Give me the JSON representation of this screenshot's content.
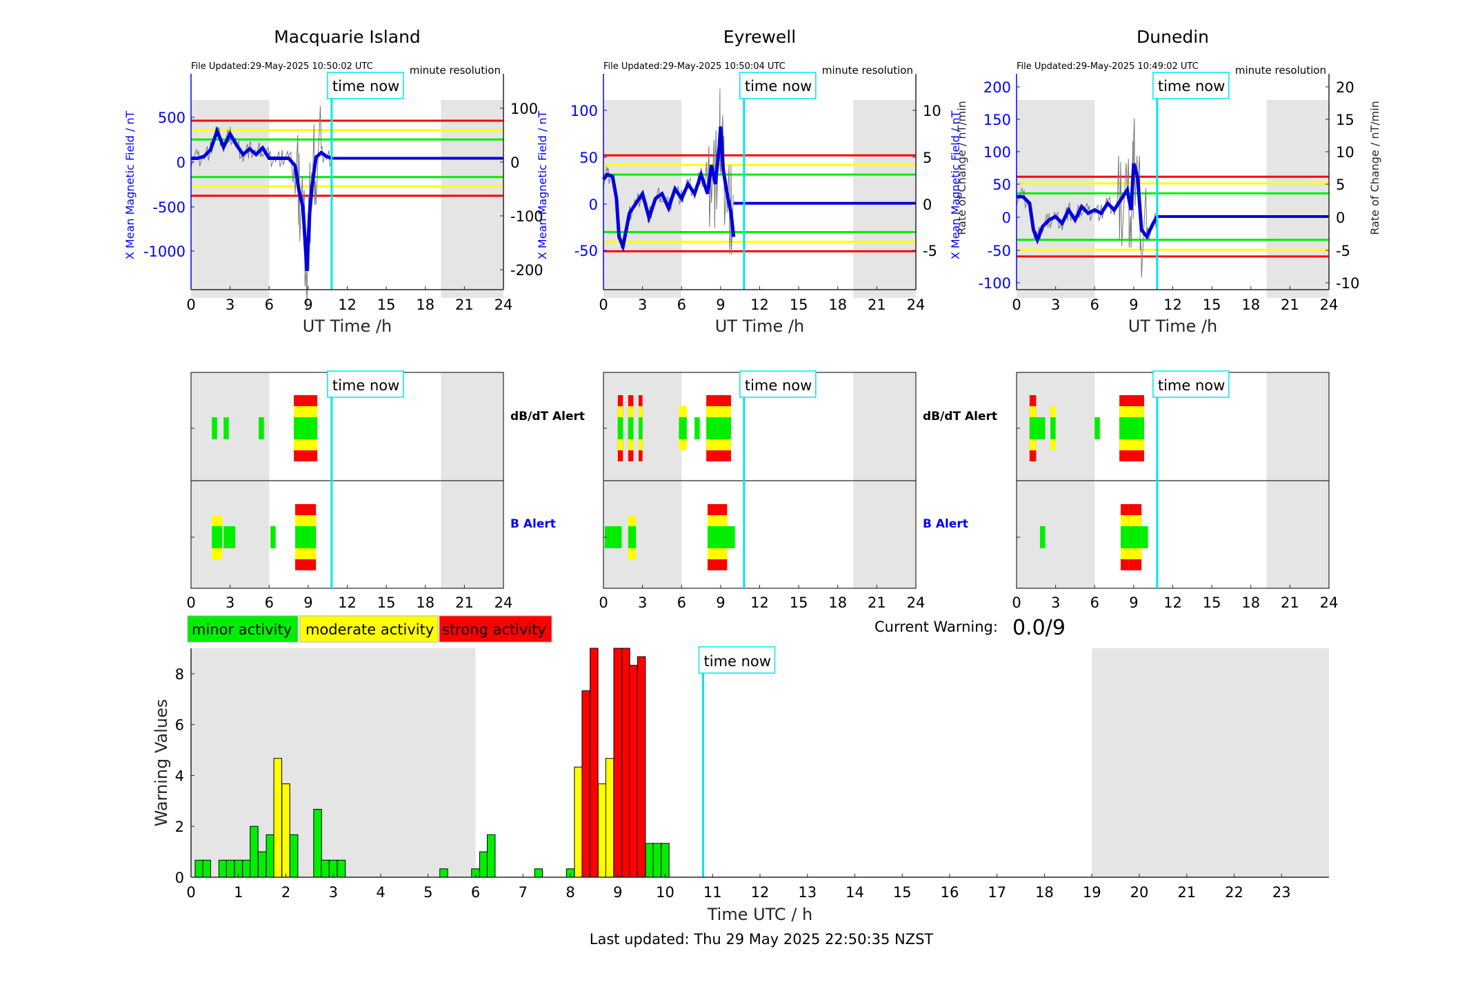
{
  "stations": [
    {
      "name": "Macquarie Island",
      "file_updated": "File Updated:29-May-2025 10:50:02 UTC",
      "resolution": "minute resolution",
      "left_ylabel": "X Mean Magnetic Field / nT",
      "right_ylabel": "",
      "left_ticks": [
        "500",
        "0",
        "-500",
        "-1000"
      ],
      "right_ticks": [
        "100",
        "0",
        "-100",
        "-200"
      ]
    },
    {
      "name": "Eyrewell",
      "file_updated": "File Updated:29-May-2025 10:50:04 UTC",
      "resolution": "minute resolution",
      "left_ylabel": "X Mean Magnetic Field / nT",
      "right_ylabel": "Rate of Change / nT/min",
      "left_ticks": [
        "100",
        "50",
        "0",
        "-50"
      ],
      "right_ticks": [
        "10",
        "5",
        "0",
        "-5"
      ]
    },
    {
      "name": "Dunedin",
      "file_updated": "File Updated:29-May-2025 10:49:02 UTC",
      "resolution": "minute resolution",
      "left_ylabel": "X Mean Magnetic Field / nT",
      "right_ylabel": "Rate of Change / nT/min",
      "left_ticks": [
        "200",
        "150",
        "100",
        "50",
        "0",
        "-50",
        "-100"
      ],
      "right_ticks": [
        "20",
        "15",
        "10",
        "5",
        "0",
        "-5",
        "-10"
      ]
    }
  ],
  "top_xlabel": "UT Time /h",
  "x_ticks_24": [
    "0",
    "3",
    "6",
    "9",
    "12",
    "15",
    "18",
    "21",
    "24"
  ],
  "time_now_label": "time now",
  "alert_labels": {
    "dbdt": "dB/dT Alert",
    "b": "B Alert"
  },
  "legend": [
    {
      "label": "minor activity",
      "color": "#00ee00"
    },
    {
      "label": "moderate activity",
      "color": "#ffff00"
    },
    {
      "label": "strong activity",
      "color": "#ff0000"
    }
  ],
  "current_warning": {
    "label": "Current Warning:",
    "value": "0.0/9"
  },
  "bottom_ylabel": "Warning Values",
  "bottom_xlabel": "Time UTC / h",
  "bottom_x_ticks": [
    "0",
    "1",
    "2",
    "3",
    "4",
    "5",
    "6",
    "7",
    "8",
    "9",
    "10",
    "11",
    "12",
    "13",
    "14",
    "15",
    "16",
    "17",
    "18",
    "19",
    "20",
    "21",
    "22",
    "23"
  ],
  "bottom_y_ticks": [
    "0",
    "2",
    "4",
    "6",
    "8"
  ],
  "last_updated": "Last updated: Thu 29 May 2025 22:50:35 NZST",
  "colors": {
    "minor": "#00ee00",
    "moderate": "#ffff00",
    "strong": "#ff0000",
    "time_now": "#00e5ee",
    "axis_blue": "#0000ff",
    "shade": "#e5e5e5"
  },
  "chart_data": [
    {
      "type": "line",
      "title": "Macquarie Island",
      "xlabel": "UT Time /h",
      "ylabel": "X Mean Magnetic Field / nT",
      "xlim": [
        0,
        24
      ],
      "ylim": [
        -1400,
        900
      ],
      "y2lim": [
        -240,
        140
      ],
      "time_now": 10.8,
      "thresholds": {
        "strong": 400,
        "moderate": 300,
        "minor": 200
      },
      "series": [
        {
          "x": [
            0,
            0.5,
            1,
            1.5,
            2,
            2.5,
            3,
            3.5,
            4,
            4.5,
            5,
            5.5,
            6,
            6.5,
            7,
            7.5,
            8,
            8.3,
            8.6,
            8.9,
            9.1,
            9.3,
            9.6,
            10,
            10.4,
            10.8
          ],
          "values": [
            0,
            0,
            20,
            90,
            290,
            120,
            260,
            140,
            40,
            100,
            40,
            110,
            0,
            0,
            0,
            0,
            -80,
            -350,
            -520,
            -1200,
            -600,
            -300,
            10,
            60,
            20,
            0
          ]
        }
      ]
    },
    {
      "type": "line",
      "title": "Eyrewell",
      "xlabel": "UT Time /h",
      "ylabel": "X Mean Magnetic Field / nT",
      "xlim": [
        0,
        24
      ],
      "ylim": [
        -90,
        135
      ],
      "y2lim": [
        -9,
        13.5
      ],
      "time_now": 10.8,
      "thresholds": {
        "strong": 50,
        "moderate": 40,
        "minor": 30
      },
      "series": [
        {
          "x": [
            0,
            0.3,
            0.7,
            1,
            1.2,
            1.5,
            2,
            2.5,
            3,
            3.5,
            4,
            4.5,
            5,
            5.5,
            6,
            6.5,
            7,
            7.5,
            8,
            8.3,
            8.6,
            8.9,
            9,
            9.2,
            9.5,
            9.8,
            10
          ],
          "values": [
            25,
            30,
            28,
            5,
            -35,
            -45,
            -10,
            0,
            10,
            -15,
            5,
            10,
            -5,
            15,
            5,
            20,
            10,
            30,
            10,
            40,
            20,
            60,
            80,
            35,
            10,
            -10,
            -35
          ]
        }
      ]
    },
    {
      "type": "line",
      "title": "Dunedin",
      "xlabel": "UT Time /h",
      "ylabel": "X Mean Magnetic Field / nT",
      "xlim": [
        0,
        24
      ],
      "ylim": [
        -110,
        215
      ],
      "y2lim": [
        -11,
        21.5
      ],
      "time_now": 10.8,
      "thresholds": {
        "strong": 60,
        "moderate": 50,
        "minor": 35
      },
      "series": [
        {
          "x": [
            0,
            0.5,
            1,
            1.3,
            1.6,
            2,
            2.5,
            3,
            3.5,
            4,
            4.5,
            5,
            5.5,
            6,
            6.5,
            7,
            7.5,
            8,
            8.5,
            8.8,
            9,
            9.3,
            9.6,
            10,
            10.5,
            10.8
          ],
          "values": [
            30,
            30,
            20,
            -20,
            -35,
            -15,
            -5,
            0,
            -10,
            10,
            -5,
            15,
            5,
            10,
            5,
            20,
            10,
            25,
            40,
            10,
            80,
            60,
            -20,
            -30,
            -10,
            0
          ]
        }
      ]
    },
    {
      "type": "bar",
      "title": "",
      "xlabel": "Time UTC / h",
      "ylabel": "Warning Values",
      "xlim": [
        0,
        24
      ],
      "ylim": [
        0,
        9
      ],
      "x": [
        0.17,
        0.33,
        0.67,
        0.83,
        1.0,
        1.17,
        1.33,
        1.5,
        1.67,
        1.83,
        2.0,
        2.17,
        2.33,
        2.67,
        2.83,
        3.0,
        3.17,
        3.33,
        5.33,
        6.0,
        6.17,
        6.33,
        7.33,
        8.0,
        8.17,
        8.33,
        8.5,
        8.67,
        8.83,
        9.0,
        9.17,
        9.33,
        9.5,
        9.67,
        9.83,
        10.0
      ],
      "values": [
        0.67,
        0.67,
        0.67,
        0.67,
        0.67,
        0.67,
        2.0,
        1.0,
        1.67,
        4.67,
        3.67,
        1.67,
        0,
        2.67,
        0.67,
        0.67,
        0.67,
        0,
        0.33,
        0.33,
        1.0,
        1.67,
        0.33,
        0.33,
        4.33,
        7.33,
        9.0,
        3.67,
        4.67,
        9.0,
        9.0,
        8.33,
        8.67,
        1.33,
        1.33,
        1.33
      ],
      "levels": [
        "minor",
        "minor",
        "minor",
        "minor",
        "minor",
        "minor",
        "minor",
        "minor",
        "minor",
        "moderate",
        "moderate",
        "minor",
        "minor",
        "minor",
        "minor",
        "minor",
        "minor",
        "minor",
        "minor",
        "minor",
        "minor",
        "minor",
        "minor",
        "minor",
        "moderate",
        "strong",
        "strong",
        "moderate",
        "moderate",
        "strong",
        "strong",
        "strong",
        "strong",
        "minor",
        "minor",
        "minor"
      ]
    }
  ]
}
